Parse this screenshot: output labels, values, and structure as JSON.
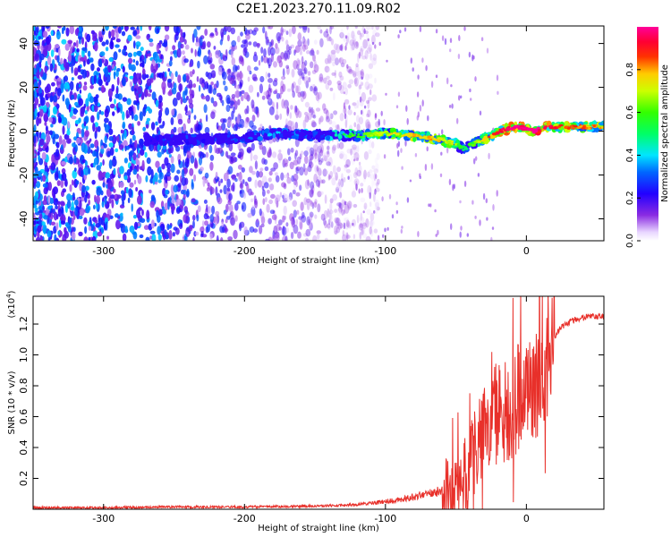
{
  "title": "C2E1.2023.270.11.09.R02",
  "spectrogram": {
    "xlabel": "Height of straight line (km)",
    "ylabel": "Frequency (Hz)",
    "xlim": [
      -350,
      55
    ],
    "ylim": [
      -50,
      48
    ],
    "xticks": [
      "-300",
      "-200",
      "-100",
      "0"
    ],
    "yticks": [
      "40",
      "20",
      "0",
      "-20",
      "-40"
    ],
    "colorbar": {
      "label": "Normalized spectral amplitude",
      "range": [
        0.0,
        1.0
      ],
      "ticks": [
        "0.0",
        "0.2",
        "0.4",
        "0.6",
        "0.8"
      ]
    }
  },
  "chart_data": [
    {
      "type": "heatmap",
      "title": "C2E1.2023.270.11.09.R02",
      "xlabel": "Height of straight line (km)",
      "ylabel": "Frequency (Hz)",
      "xlim": [
        -350,
        55
      ],
      "ylim": [
        -50,
        48
      ],
      "colorscale": "rainbow (violet → blue → cyan → green → yellow → red → magenta)",
      "value_range": [
        0.0,
        1.0
      ],
      "ridge": {
        "x": [
          -350,
          -300,
          -250,
          -200,
          -180,
          -150,
          -120,
          -100,
          -80,
          -60,
          -50,
          -45,
          -35,
          -25,
          -15,
          -5,
          5,
          15,
          30,
          55
        ],
        "frequency": [
          -4,
          -4,
          -4,
          -3,
          -1,
          -2,
          -2,
          -1,
          -2,
          -4,
          -6,
          -8,
          -5,
          -2,
          1,
          2,
          0,
          2,
          2,
          2
        ],
        "amplitude": [
          0.2,
          0.25,
          0.3,
          0.35,
          0.4,
          0.4,
          0.55,
          0.65,
          0.75,
          0.7,
          0.6,
          0.45,
          0.6,
          0.8,
          0.9,
          0.95,
          0.95,
          0.9,
          0.8,
          0.75
        ]
      },
      "noise_region": {
        "x": [
          -350,
          -130
        ],
        "frequency": [
          -50,
          48
        ],
        "amplitude": [
          0.05,
          0.2
        ]
      }
    },
    {
      "type": "line",
      "title": "",
      "xlabel": "Height of straight line (km)",
      "ylabel": "SNR (10 * v/v)",
      "y_multiplier": "(x10^4)",
      "xlim": [
        -350,
        55
      ],
      "ylim": [
        0,
        1.38
      ],
      "xticks": [
        "-300",
        "-200",
        "-100",
        "0"
      ],
      "yticks": [
        "0.2",
        "0.4",
        "0.6",
        "0.8",
        "1.0",
        "1.2"
      ],
      "series": [
        {
          "color": "#e8302a",
          "x": [
            -350,
            -300,
            -250,
            -200,
            -150,
            -120,
            -100,
            -90,
            -80,
            -70,
            -60,
            -55,
            -50,
            -45,
            -40,
            -35,
            -30,
            -25,
            -20,
            -15,
            -10,
            -5,
            0,
            5,
            10,
            15,
            20,
            25,
            30,
            35,
            40,
            45,
            50,
            55
          ],
          "y": [
            0.01,
            0.01,
            0.015,
            0.015,
            0.02,
            0.03,
            0.05,
            0.06,
            0.08,
            0.1,
            0.12,
            0.13,
            0.15,
            0.2,
            0.3,
            0.42,
            0.55,
            0.62,
            0.62,
            0.65,
            0.7,
            0.72,
            0.72,
            0.8,
            0.95,
            1.05,
            1.12,
            1.18,
            1.21,
            1.23,
            1.24,
            1.25,
            1.25,
            1.25
          ]
        }
      ]
    }
  ],
  "snr": {
    "xlabel": "Height of straight line (km)",
    "ylabel": "SNR (10 * v/v)",
    "multiplier_base": "(x10",
    "multiplier_exp": "4",
    "multiplier_close": ")",
    "xticks": [
      "-300",
      "-200",
      "-100",
      "0"
    ],
    "yticks": [
      "0.2",
      "0.4",
      "0.6",
      "0.8",
      "1.0",
      "1.2"
    ]
  },
  "colors": {
    "snr_line": "#e8302a",
    "noise": "#9b59e6",
    "ridge_low": "#5500ff"
  }
}
